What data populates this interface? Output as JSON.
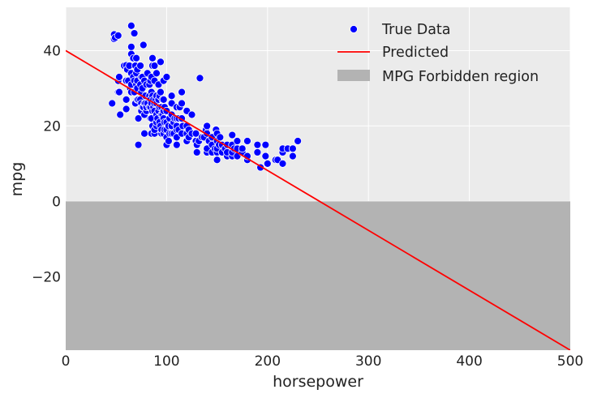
{
  "chart_data": {
    "type": "scatter",
    "xlabel": "horsepower",
    "ylabel": "mpg",
    "xlim": [
      0,
      500
    ],
    "ylim": [
      -39.5,
      51.5
    ],
    "xticks": [
      0,
      100,
      200,
      300,
      400,
      500
    ],
    "yticks": [
      -20,
      0,
      20,
      40
    ],
    "xtick_labels": [
      "0",
      "100",
      "200",
      "300",
      "400",
      "500"
    ],
    "ytick_labels": [
      "−20",
      "0",
      "20",
      "40"
    ],
    "grid": true,
    "legend_position": "top-right",
    "legend": {
      "true_data": "True Data",
      "predicted": "Predicted",
      "forbidden": "MPG Forbidden region"
    },
    "colors": {
      "plot_background": "#ebebeb",
      "grid": "#ffffff",
      "points": "#0000ff",
      "point_edge": "#ffffff",
      "line": "#ff0000",
      "forbidden_region": "#b3b3b3"
    },
    "forbidden_region": {
      "y_from": -39.5,
      "y_to": 0
    },
    "line": {
      "x": [
        0,
        500
      ],
      "y": [
        40.0,
        -39.5
      ]
    },
    "points": [
      [
        46,
        26
      ],
      [
        48,
        43.1
      ],
      [
        48,
        44.3
      ],
      [
        49,
        43.4
      ],
      [
        52,
        29
      ],
      [
        52,
        32
      ],
      [
        52,
        44
      ],
      [
        53,
        29
      ],
      [
        53,
        33
      ],
      [
        54,
        23
      ],
      [
        58,
        36
      ],
      [
        60,
        24.5
      ],
      [
        60,
        27
      ],
      [
        60,
        32
      ],
      [
        60,
        36.1
      ],
      [
        61,
        35
      ],
      [
        62,
        32
      ],
      [
        63,
        36
      ],
      [
        64,
        30
      ],
      [
        65,
        29
      ],
      [
        65,
        31
      ],
      [
        65,
        34
      ],
      [
        65,
        39.1
      ],
      [
        65,
        41
      ],
      [
        65,
        46.6
      ],
      [
        67,
        33
      ],
      [
        67,
        38
      ],
      [
        68,
        29
      ],
      [
        68,
        32
      ],
      [
        68,
        44.6
      ],
      [
        69,
        26
      ],
      [
        69,
        36
      ],
      [
        70,
        31
      ],
      [
        70,
        34
      ],
      [
        70,
        38
      ],
      [
        71,
        27
      ],
      [
        71,
        30
      ],
      [
        71,
        32
      ],
      [
        71,
        35
      ],
      [
        72,
        15
      ],
      [
        72,
        22
      ],
      [
        72,
        27
      ],
      [
        74,
        27
      ],
      [
        74,
        31
      ],
      [
        74,
        36
      ],
      [
        75,
        24
      ],
      [
        75,
        26
      ],
      [
        75,
        29
      ],
      [
        75,
        33
      ],
      [
        76,
        25
      ],
      [
        76,
        30
      ],
      [
        76,
        33
      ],
      [
        77,
        25
      ],
      [
        77,
        41.5
      ],
      [
        78,
        18
      ],
      [
        78,
        23
      ],
      [
        78,
        26
      ],
      [
        78,
        32
      ],
      [
        79,
        26
      ],
      [
        79,
        28
      ],
      [
        80,
        24
      ],
      [
        80,
        25
      ],
      [
        80,
        31
      ],
      [
        81,
        26
      ],
      [
        81,
        34
      ],
      [
        83,
        25
      ],
      [
        83,
        28
      ],
      [
        83,
        31
      ],
      [
        84,
        22
      ],
      [
        84,
        25
      ],
      [
        84,
        27
      ],
      [
        84,
        32
      ],
      [
        85,
        18
      ],
      [
        85,
        22
      ],
      [
        85,
        26
      ],
      [
        85,
        29
      ],
      [
        85,
        33
      ],
      [
        86,
        20
      ],
      [
        86,
        24
      ],
      [
        86,
        28
      ],
      [
        86,
        36
      ],
      [
        86,
        38
      ],
      [
        87,
        25
      ],
      [
        87,
        27
      ],
      [
        88,
        18
      ],
      [
        88,
        19
      ],
      [
        88,
        24
      ],
      [
        88,
        26
      ],
      [
        88,
        32
      ],
      [
        88,
        36
      ],
      [
        89,
        27
      ],
      [
        90,
        20
      ],
      [
        90,
        21
      ],
      [
        90,
        23
      ],
      [
        90,
        26
      ],
      [
        90,
        28
      ],
      [
        90,
        34
      ],
      [
        91,
        22
      ],
      [
        92,
        24
      ],
      [
        92,
        27
      ],
      [
        92,
        31
      ],
      [
        93,
        21
      ],
      [
        93,
        25
      ],
      [
        93,
        28
      ],
      [
        94,
        20
      ],
      [
        94,
        29
      ],
      [
        94,
        37
      ],
      [
        95,
        18
      ],
      [
        95,
        19
      ],
      [
        95,
        23
      ],
      [
        95,
        25
      ],
      [
        96,
        23
      ],
      [
        96,
        27
      ],
      [
        97,
        18
      ],
      [
        97,
        22
      ],
      [
        97,
        24
      ],
      [
        97,
        27
      ],
      [
        97,
        32
      ],
      [
        98,
        19
      ],
      [
        98,
        21
      ],
      [
        98,
        25
      ],
      [
        100,
        15
      ],
      [
        100,
        17
      ],
      [
        100,
        19
      ],
      [
        100,
        21
      ],
      [
        100,
        24
      ],
      [
        100,
        33
      ],
      [
        102,
        16
      ],
      [
        102,
        20
      ],
      [
        103,
        18
      ],
      [
        103,
        22
      ],
      [
        105,
        18
      ],
      [
        105,
        20
      ],
      [
        105,
        23
      ],
      [
        105,
        26
      ],
      [
        105,
        28
      ],
      [
        107,
        18
      ],
      [
        107,
        21
      ],
      [
        108,
        22
      ],
      [
        110,
        15
      ],
      [
        110,
        17
      ],
      [
        110,
        19
      ],
      [
        110,
        20
      ],
      [
        110,
        22
      ],
      [
        110,
        25
      ],
      [
        112,
        19
      ],
      [
        112,
        22
      ],
      [
        113,
        25
      ],
      [
        115,
        18
      ],
      [
        115,
        22
      ],
      [
        115,
        26
      ],
      [
        115,
        29
      ],
      [
        116,
        20
      ],
      [
        120,
        16
      ],
      [
        120,
        18
      ],
      [
        120,
        20
      ],
      [
        120,
        24
      ],
      [
        122,
        17
      ],
      [
        122,
        19
      ],
      [
        125,
        18
      ],
      [
        125,
        23
      ],
      [
        129,
        16
      ],
      [
        129,
        18
      ],
      [
        130,
        13
      ],
      [
        130,
        15
      ],
      [
        132,
        16
      ],
      [
        133,
        32.7
      ],
      [
        135,
        17
      ],
      [
        137,
        17
      ],
      [
        139,
        19
      ],
      [
        140,
        13
      ],
      [
        140,
        14
      ],
      [
        140,
        18
      ],
      [
        140,
        20
      ],
      [
        142,
        16
      ],
      [
        145,
        13
      ],
      [
        145,
        15
      ],
      [
        145,
        17
      ],
      [
        148,
        14
      ],
      [
        149,
        19
      ],
      [
        150,
        11
      ],
      [
        150,
        13
      ],
      [
        150,
        14
      ],
      [
        150,
        16
      ],
      [
        150,
        18
      ],
      [
        152,
        15
      ],
      [
        153,
        17
      ],
      [
        155,
        13
      ],
      [
        155,
        15
      ],
      [
        158,
        14
      ],
      [
        160,
        12
      ],
      [
        160,
        13
      ],
      [
        160,
        15
      ],
      [
        165,
        12
      ],
      [
        165,
        13
      ],
      [
        165,
        15
      ],
      [
        165,
        17.6
      ],
      [
        167,
        14
      ],
      [
        170,
        12
      ],
      [
        170,
        14
      ],
      [
        170,
        16
      ],
      [
        175,
        13
      ],
      [
        175,
        14
      ],
      [
        180,
        11
      ],
      [
        180,
        12
      ],
      [
        180,
        16
      ],
      [
        190,
        13
      ],
      [
        190,
        15
      ],
      [
        193,
        9
      ],
      [
        198,
        12
      ],
      [
        198,
        15
      ],
      [
        200,
        10
      ],
      [
        208,
        11
      ],
      [
        210,
        11
      ],
      [
        215,
        10
      ],
      [
        215,
        13
      ],
      [
        215,
        14
      ],
      [
        220,
        14
      ],
      [
        225,
        12
      ],
      [
        225,
        14
      ],
      [
        230,
        16
      ]
    ]
  }
}
